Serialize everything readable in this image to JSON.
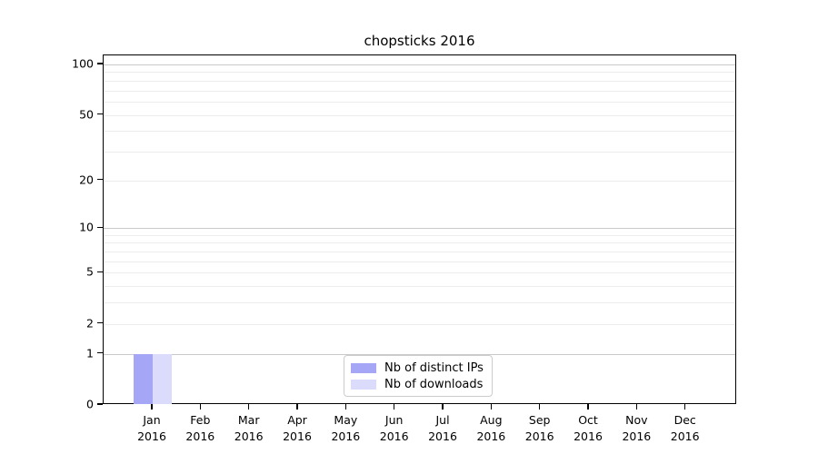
{
  "chart_data": {
    "type": "bar",
    "title": "chopsticks 2016",
    "categories": [
      {
        "month": "Jan",
        "year": "2016"
      },
      {
        "month": "Feb",
        "year": "2016"
      },
      {
        "month": "Mar",
        "year": "2016"
      },
      {
        "month": "Apr",
        "year": "2016"
      },
      {
        "month": "May",
        "year": "2016"
      },
      {
        "month": "Jun",
        "year": "2016"
      },
      {
        "month": "Jul",
        "year": "2016"
      },
      {
        "month": "Aug",
        "year": "2016"
      },
      {
        "month": "Sep",
        "year": "2016"
      },
      {
        "month": "Oct",
        "year": "2016"
      },
      {
        "month": "Nov",
        "year": "2016"
      },
      {
        "month": "Dec",
        "year": "2016"
      }
    ],
    "series": [
      {
        "name": "Nb of distinct IPs",
        "color": "#a6a6f7",
        "values": [
          1,
          0,
          0,
          0,
          0,
          0,
          0,
          0,
          0,
          0,
          0,
          0
        ]
      },
      {
        "name": "Nb of downloads",
        "color": "#dbdbfb",
        "values": [
          1,
          0,
          0,
          0,
          0,
          0,
          0,
          0,
          0,
          0,
          0,
          0
        ]
      }
    ],
    "y_ticks": [
      0,
      1,
      2,
      5,
      10,
      20,
      50,
      100
    ],
    "y_minor_gridlines": [
      2,
      3,
      4,
      5,
      6,
      7,
      8,
      9,
      20,
      30,
      40,
      50,
      60,
      70,
      80,
      90
    ],
    "y_major_gridlines": [
      1,
      10,
      100
    ],
    "y_scale": "log1p",
    "ylim": [
      0,
      100
    ],
    "xlabel": "",
    "ylabel": "",
    "grid": "horizontal",
    "legend_position": "bottom-center"
  }
}
